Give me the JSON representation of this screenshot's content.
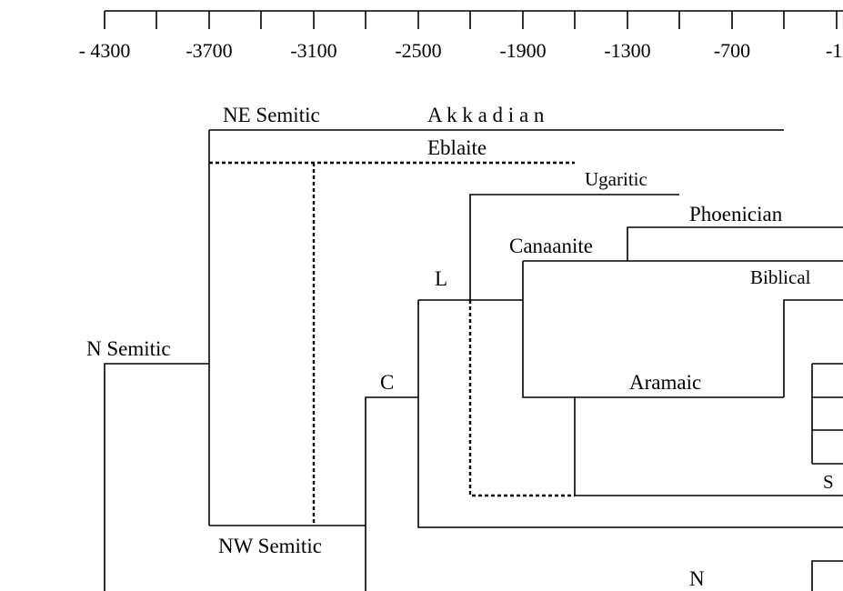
{
  "axis": {
    "labels": [
      "- 4300",
      "-3700",
      "-3100",
      "-2500",
      "-1900",
      "-1300",
      "-700",
      "-1"
    ]
  },
  "nodes": [
    {
      "label": "NE Semitic"
    },
    {
      "label": "A k k a d i a n"
    },
    {
      "label": "Eblaite"
    },
    {
      "label": "Ugaritic"
    },
    {
      "label": "Phoenician"
    },
    {
      "label": "Canaanite"
    },
    {
      "label": "L"
    },
    {
      "label": "Biblical"
    },
    {
      "label": "N Semitic"
    },
    {
      "label": "C"
    },
    {
      "label": "Aramaic"
    },
    {
      "label": "S"
    },
    {
      "label": "NW Semitic"
    },
    {
      "label": "N"
    }
  ]
}
